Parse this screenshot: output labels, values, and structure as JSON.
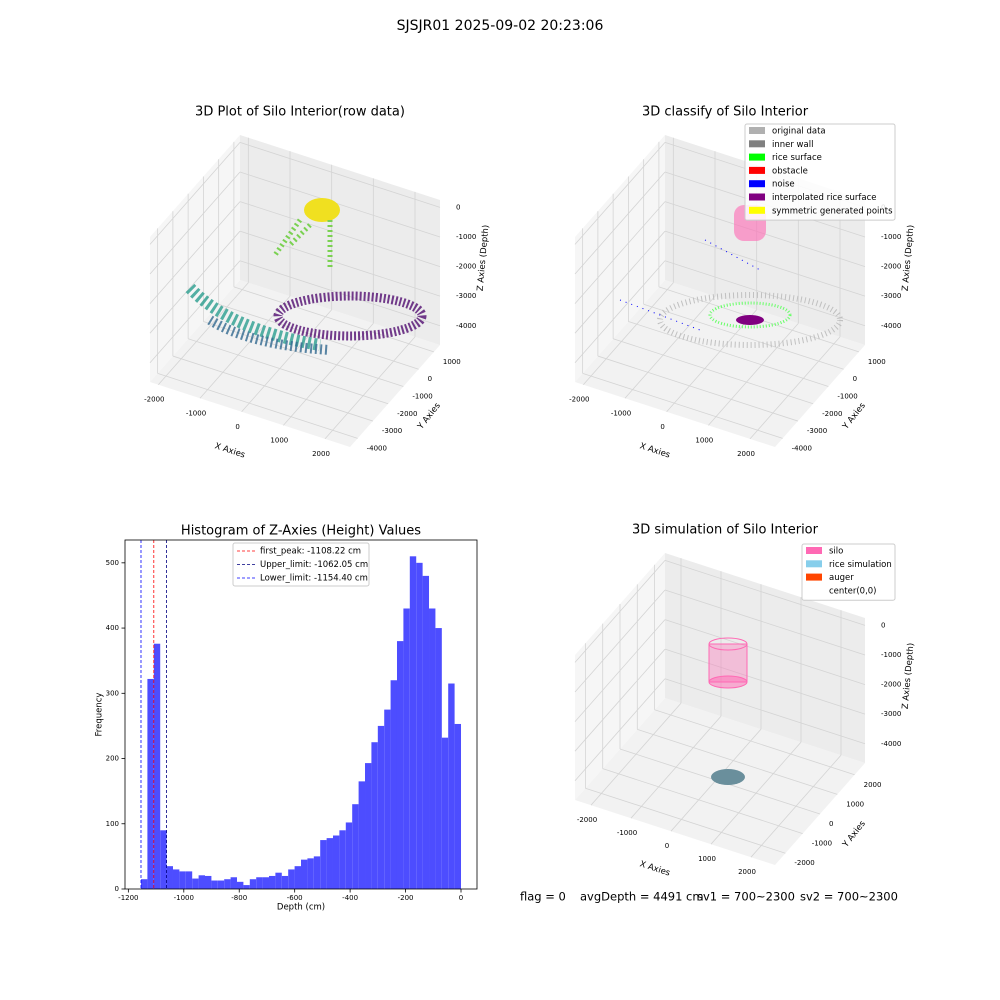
{
  "title": "SJSJR01 2025-09-02 20:23:06",
  "footer": [
    "flag = 0",
    "avgDepth = 4491 cm",
    "sv1 = 700~2300",
    "sv2 = 700~2300"
  ],
  "chart_data": [
    {
      "type": "scatter3d",
      "title": "3D Plot of Silo Interior(row data)",
      "xlabel": "X Axies",
      "ylabel": "Y Axies",
      "zlabel": "Z Axies (Depth)",
      "xlim": [
        -2200,
        2600
      ],
      "ylim": [
        -4500,
        1400
      ],
      "zlim": [
        -4650,
        250
      ],
      "xticks": [
        -2000,
        -1000,
        0,
        1000,
        2000
      ],
      "yticks": [
        -4000,
        -3000,
        -2000,
        -1000,
        0,
        1000
      ],
      "zticks": [
        -4000,
        -3000,
        -2000,
        -1000,
        0
      ]
    },
    {
      "type": "scatter3d",
      "title": "3D classify of Silo Interior",
      "xlabel": "X Axies",
      "ylabel": "Y Axies",
      "zlabel": "Z Axies (Depth)",
      "xlim": [
        -2200,
        2600
      ],
      "ylim": [
        -4500,
        1400
      ],
      "zlim": [
        -4650,
        250
      ],
      "xticks": [
        -2000,
        -1000,
        0,
        1000,
        2000
      ],
      "yticks": [
        -4000,
        -3000,
        -2000,
        -1000,
        0,
        1000
      ],
      "zticks": [
        -4000,
        -3000,
        -2000,
        -1000,
        0
      ],
      "series": [
        {
          "name": "original data",
          "color": "#b0b0b0"
        },
        {
          "name": "inner wall",
          "color": "#808080"
        },
        {
          "name": "rice surface",
          "color": "#00ff00"
        },
        {
          "name": "obstacle",
          "color": "#ff0000"
        },
        {
          "name": "noise",
          "color": "#0000ff"
        },
        {
          "name": "interpolated rice surface",
          "color": "#800080"
        },
        {
          "name": "symmetric generated points",
          "color": "#ffff00"
        }
      ]
    },
    {
      "type": "histogram",
      "title": "Histogram of Z-Axies (Height) Values",
      "xlabel": "Depth (cm)",
      "ylabel": "Frequency",
      "color": "#4d4dff",
      "bins": [
        -1154.4,
        -1131.3,
        -1108.2,
        -1085.1,
        -1062.1,
        -1039.0,
        -1015.9,
        -992.8,
        -969.7,
        -946.6,
        -923.5,
        -900.4,
        -877.4,
        -854.3,
        -831.2,
        -808.1,
        -785.0,
        -761.9,
        -738.8,
        -715.7,
        -692.6,
        -669.6,
        -646.5,
        -623.4,
        -600.3,
        -577.2,
        -554.1,
        -531.0,
        -507.9,
        -484.8,
        -461.8,
        -438.7,
        -415.6,
        -392.5,
        -369.4,
        -346.3,
        -323.2,
        -300.1,
        -277.0,
        -254.0,
        -230.9,
        -207.8,
        -184.7,
        -161.6,
        -138.5,
        -115.4,
        -92.3,
        -69.2,
        -46.2,
        -23.1,
        0
      ],
      "values": [
        15,
        322,
        376,
        90,
        35,
        30,
        27,
        27,
        16,
        21,
        20,
        13,
        13,
        15,
        18,
        11,
        6,
        15,
        18,
        18,
        20,
        25,
        20,
        30,
        35,
        45,
        47,
        50,
        75,
        78,
        82,
        90,
        102,
        130,
        165,
        193,
        225,
        250,
        275,
        320,
        380,
        430,
        510,
        500,
        480,
        430,
        400,
        232,
        315,
        253
      ],
      "vlines": [
        {
          "name": "first_peak: -1108.22 cm",
          "value": -1108.22,
          "color": "#ff0000"
        },
        {
          "name": "Upper_limit: -1062.05 cm",
          "value": -1062.05,
          "color": "#000080"
        },
        {
          "name": "Lower_limit: -1154.40 cm",
          "value": -1154.4,
          "color": "#0000ff"
        }
      ],
      "xlim": [
        -1212.1,
        57.7
      ],
      "ylim": [
        0,
        535
      ],
      "xticks": [
        -1200,
        -1000,
        -800,
        -600,
        -400,
        -200,
        0
      ],
      "yticks": [
        0,
        100,
        200,
        300,
        400,
        500
      ]
    },
    {
      "type": "scatter3d",
      "title": "3D simulation of Silo Interior",
      "xlabel": "X Axies",
      "ylabel": "Y Axies",
      "zlabel": "Z Axies (Depth)",
      "xlim": [
        -2400,
        2600
      ],
      "ylim": [
        -2600,
        2600
      ],
      "zlim": [
        -4650,
        250
      ],
      "xticks": [
        -2000,
        -1000,
        0,
        1000,
        2000
      ],
      "yticks": [
        -2000,
        -1000,
        0,
        1000,
        2000
      ],
      "zticks": [
        -4000,
        -3000,
        -2000,
        -1000,
        0
      ],
      "series": [
        {
          "name": "silo",
          "color": "#ff69b4"
        },
        {
          "name": "rice simulation",
          "color": "#87ceeb"
        },
        {
          "name": "auger",
          "color": "#ff4500"
        },
        {
          "name": "center(0,0)",
          "color": "#ffffff"
        }
      ]
    }
  ]
}
